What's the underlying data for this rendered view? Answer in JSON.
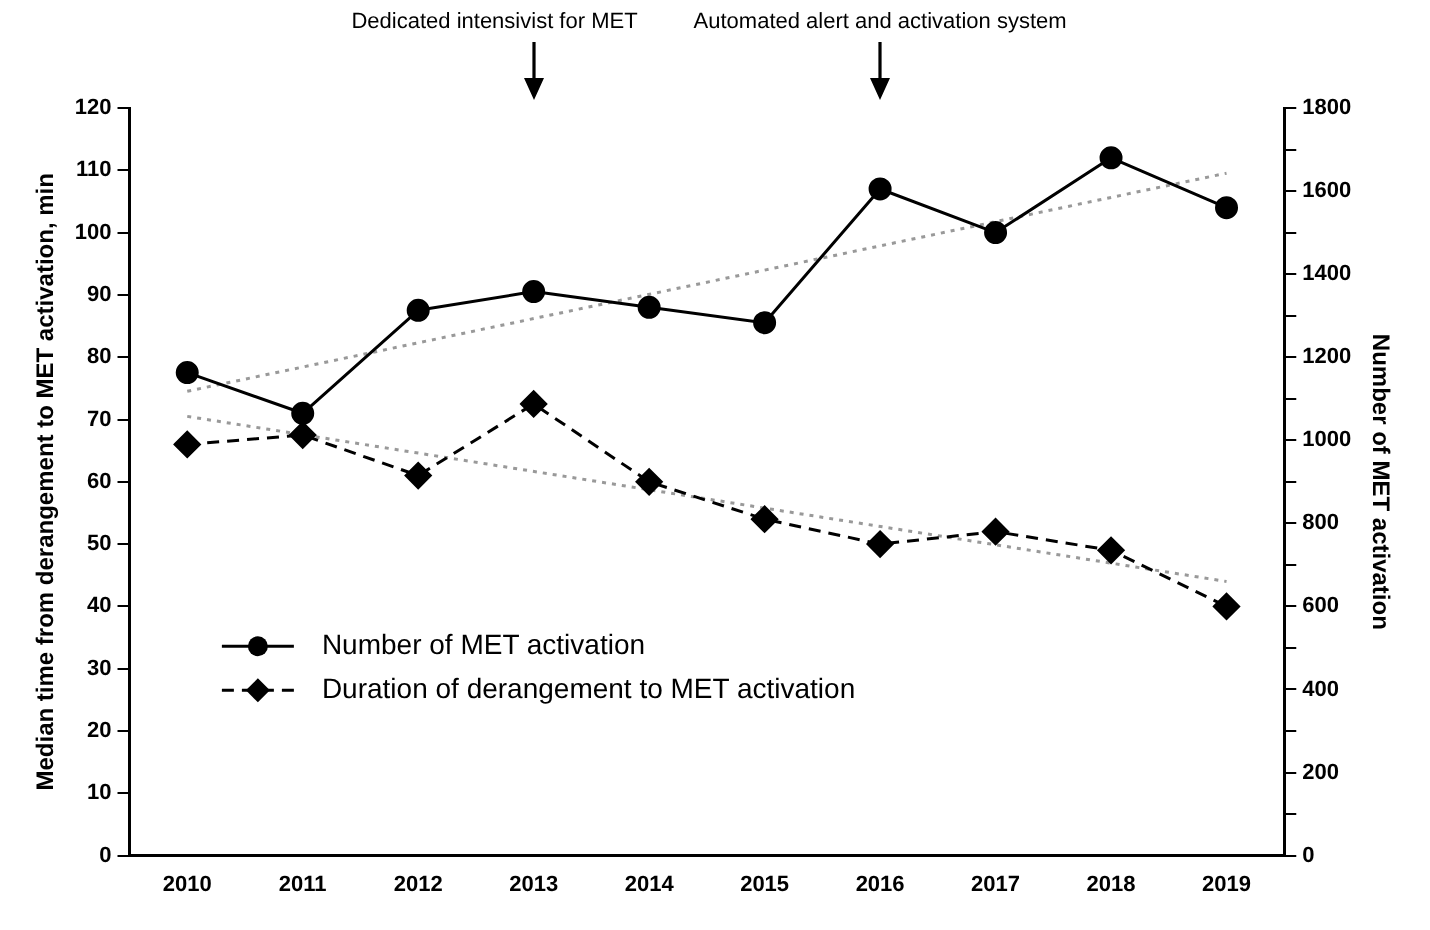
{
  "chart_data": {
    "type": "line",
    "categories": [
      "2010",
      "2011",
      "2012",
      "2013",
      "2014",
      "2015",
      "2016",
      "2017",
      "2018",
      "2019"
    ],
    "ylabel": "Median time from derangement to MET activation, min",
    "y2label": "Number of MET activation",
    "ylim": [
      0,
      120
    ],
    "yticks": [
      0,
      10,
      20,
      30,
      40,
      50,
      60,
      70,
      80,
      90,
      100,
      110,
      120
    ],
    "y2lim": [
      0,
      1800
    ],
    "y2ticks": [
      0,
      {
        "value": 100,
        "label": null
      },
      200,
      {
        "value": 300,
        "label": null
      },
      400,
      {
        "value": 500,
        "label": null
      },
      600,
      {
        "value": 700,
        "label": null
      },
      800,
      {
        "value": 900,
        "label": null
      },
      1000,
      {
        "value": 1100,
        "label": null
      },
      1200,
      {
        "value": 1300,
        "label": null
      },
      1400,
      {
        "value": 1500,
        "label": null
      },
      1600,
      {
        "value": 1700,
        "label": null
      },
      1800
    ],
    "grid": false,
    "legend": "left",
    "series": [
      {
        "name": "Number of MET activation",
        "axis": "y2",
        "color": "#000000",
        "marker": "circle",
        "line_style": "solid",
        "values": [
          1163,
          1065,
          1313,
          1358,
          1320,
          1283,
          1605,
          1500,
          1680,
          1560
        ]
      },
      {
        "name": "Duration of derangement to MET activation",
        "axis": "y",
        "color": "#000000",
        "marker": "diamond",
        "line_style": "dashed",
        "values": [
          66,
          67.5,
          61,
          72.5,
          60,
          54,
          50,
          52,
          49,
          40
        ]
      },
      {
        "axis": "y2",
        "color": "#999999",
        "marker": "none",
        "line_style": "dotted",
        "values": [
          1118,
          null,
          null,
          null,
          null,
          null,
          null,
          null,
          null,
          1643
        ]
      },
      {
        "axis": "y",
        "color": "#999999",
        "marker": "none",
        "line_style": "dotted",
        "values": [
          70.5,
          null,
          null,
          null,
          null,
          null,
          null,
          null,
          null,
          44
        ]
      }
    ],
    "annotations": [
      "Dedicated intensivist for MET",
      "Automated alert and activation system"
    ]
  }
}
